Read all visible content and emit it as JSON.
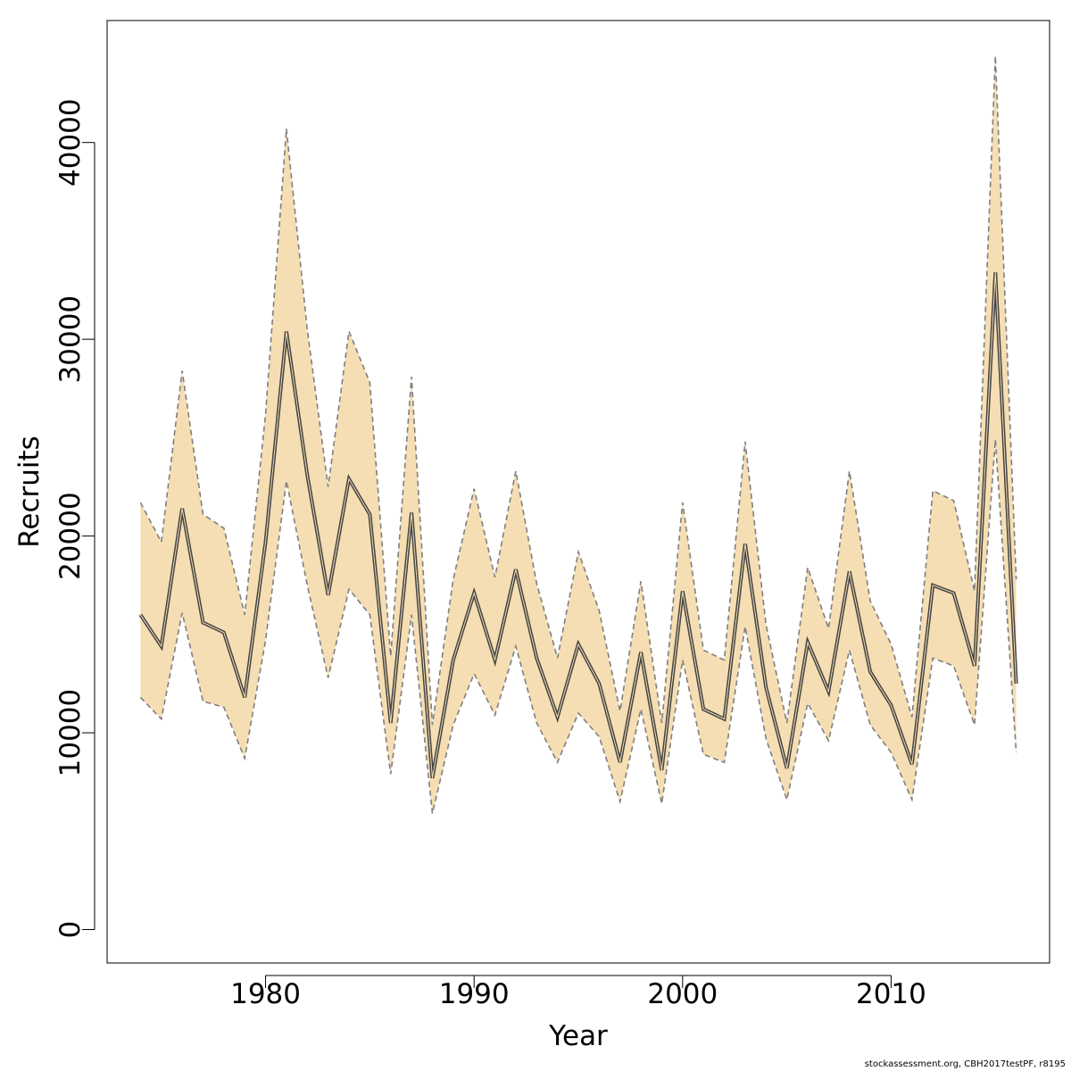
{
  "chart_data": {
    "type": "area",
    "xlabel": "Year",
    "ylabel": "Recruits",
    "xlim": [
      1972.4,
      2017.6
    ],
    "ylim": [
      -1700,
      46200
    ],
    "x_ticks": [
      1980,
      1990,
      2000,
      2010
    ],
    "y_ticks": [
      0,
      10000,
      20000,
      30000,
      40000
    ],
    "grid": false,
    "legend": "none",
    "x": [
      1974,
      1975,
      1976,
      1977,
      1978,
      1979,
      1980,
      1981,
      1982,
      1983,
      1984,
      1985,
      1986,
      1987,
      1988,
      1989,
      1990,
      1991,
      1992,
      1993,
      1994,
      1995,
      1996,
      1997,
      1998,
      1999,
      2000,
      2001,
      2002,
      2003,
      2004,
      2005,
      2006,
      2007,
      2008,
      2009,
      2010,
      2011,
      2012,
      2013,
      2014,
      2015,
      2016
    ],
    "series": [
      {
        "role": "estimate",
        "values": [
          16000,
          14400,
          21400,
          15600,
          15100,
          11800,
          19700,
          30400,
          23100,
          17000,
          22900,
          21100,
          10500,
          21200,
          7700,
          13700,
          17100,
          13700,
          18300,
          13800,
          10800,
          14500,
          12500,
          8500,
          14100,
          8100,
          17200,
          11200,
          10700,
          19600,
          12300,
          8200,
          14600,
          12100,
          18200,
          13100,
          11400,
          8400,
          17500,
          17100,
          13400,
          33400,
          12500
        ]
      },
      {
        "role": "upper",
        "values": [
          21700,
          19700,
          28400,
          21100,
          20400,
          16000,
          26200,
          40700,
          30500,
          22500,
          30400,
          27800,
          13900,
          28100,
          10400,
          17800,
          22400,
          17900,
          23300,
          17600,
          13800,
          19200,
          16200,
          11100,
          17700,
          10500,
          21700,
          14200,
          13700,
          24800,
          15500,
          10500,
          18400,
          15300,
          23300,
          16700,
          14500,
          10800,
          22300,
          21800,
          17200,
          44400,
          17800
        ]
      },
      {
        "role": "lower",
        "values": [
          11800,
          10700,
          16100,
          11600,
          11300,
          8700,
          14700,
          22800,
          17500,
          12800,
          17300,
          16000,
          7900,
          16000,
          5900,
          10400,
          13000,
          10900,
          14400,
          10500,
          8500,
          11000,
          9800,
          6500,
          11200,
          6400,
          13700,
          8900,
          8500,
          15400,
          9700,
          6600,
          11500,
          9600,
          14200,
          10400,
          9000,
          6600,
          13800,
          13400,
          10400,
          24900,
          9000
        ]
      }
    ],
    "colors": {
      "band_fill": "#f5deb3",
      "band_edge": "#7f7f7f",
      "line": "#444444",
      "axis": "#000000"
    }
  },
  "footnote": "stockassessment.org, CBH2017testPF, r8195"
}
